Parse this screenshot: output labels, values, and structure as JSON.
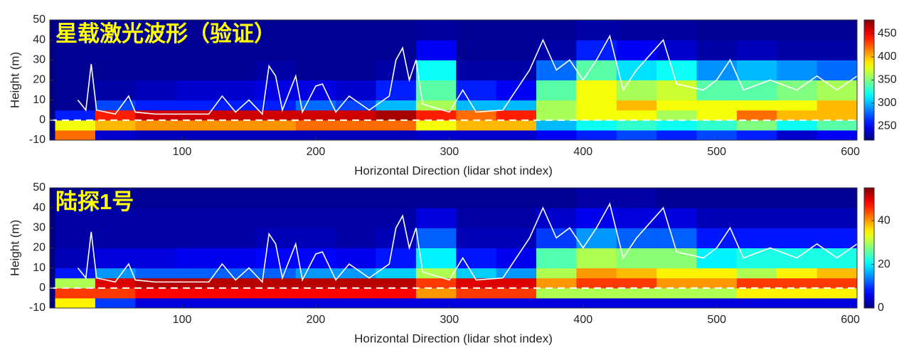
{
  "chart_data": [
    {
      "type": "heatmap",
      "title": "星载激光波形（验证）",
      "x_label": "Horizontal Direction (lidar shot index)",
      "y_label": "Height (m)",
      "xlim": [
        1,
        605
      ],
      "xticks": [
        100,
        200,
        300,
        400,
        500,
        600
      ],
      "ylim": [
        -10,
        50
      ],
      "yticks": [
        -10,
        0,
        10,
        20,
        30,
        40,
        50
      ],
      "xbins": [
        5,
        35,
        65,
        95,
        125,
        155,
        185,
        215,
        245,
        275,
        305,
        335,
        365,
        395,
        425,
        455,
        485,
        515,
        545,
        575,
        605
      ],
      "ybins": [
        -10,
        -5,
        0,
        5,
        10,
        20,
        30,
        40,
        50
      ],
      "colormap": "jet",
      "clim": [
        220,
        480
      ],
      "cticks": [
        250,
        300,
        350,
        400,
        450
      ],
      "z": [
        [
          420,
          240,
          235,
          235,
          235,
          235,
          235,
          235,
          235,
          240,
          240,
          240,
          250,
          260,
          270,
          260,
          270,
          260,
          240,
          250
        ],
        [
          380,
          400,
          410,
          410,
          410,
          410,
          420,
          420,
          420,
          380,
          400,
          400,
          300,
          320,
          330,
          320,
          330,
          350,
          320,
          340
        ],
        [
          260,
          440,
          460,
          460,
          460,
          460,
          460,
          460,
          470,
          440,
          420,
          440,
          360,
          380,
          380,
          360,
          380,
          420,
          400,
          400
        ],
        [
          225,
          270,
          260,
          260,
          260,
          260,
          280,
          270,
          300,
          360,
          300,
          300,
          360,
          380,
          400,
          380,
          380,
          380,
          380,
          400
        ],
        [
          225,
          230,
          235,
          240,
          240,
          245,
          245,
          240,
          260,
          340,
          260,
          250,
          340,
          380,
          360,
          370,
          340,
          340,
          350,
          360
        ],
        [
          225,
          225,
          225,
          225,
          225,
          230,
          225,
          225,
          230,
          320,
          230,
          230,
          280,
          340,
          310,
          320,
          290,
          300,
          290,
          280
        ],
        [
          225,
          225,
          225,
          225,
          225,
          225,
          225,
          225,
          225,
          250,
          225,
          225,
          230,
          260,
          250,
          240,
          230,
          235,
          230,
          230
        ],
        [
          225,
          225,
          225,
          225,
          225,
          225,
          225,
          225,
          225,
          228,
          225,
          225,
          225,
          230,
          228,
          228,
          225,
          225,
          225,
          225
        ]
      ],
      "line": {
        "color": "#ffffff",
        "x": [
          22,
          28,
          32,
          36,
          50,
          60,
          65,
          80,
          100,
          120,
          130,
          140,
          150,
          160,
          165,
          170,
          175,
          185,
          190,
          200,
          205,
          215,
          225,
          240,
          255,
          260,
          265,
          270,
          275,
          280,
          300,
          310,
          320,
          340,
          350,
          360,
          370,
          380,
          390,
          400,
          410,
          420,
          430,
          440,
          460,
          470,
          490,
          500,
          510,
          520,
          540,
          560,
          575,
          590,
          605
        ],
        "values": [
          10,
          5,
          28,
          5,
          3,
          12,
          4,
          3,
          3,
          3,
          12,
          4,
          10,
          3,
          27,
          22,
          5,
          22,
          4,
          17,
          18,
          4,
          12,
          5,
          12,
          30,
          36,
          20,
          30,
          8,
          4,
          15,
          4,
          5,
          15,
          25,
          40,
          25,
          30,
          20,
          30,
          42,
          15,
          25,
          40,
          18,
          15,
          20,
          30,
          15,
          20,
          15,
          22,
          15,
          22
        ]
      },
      "reference_line": {
        "value": 0,
        "color": "#ffffff"
      }
    },
    {
      "type": "heatmap",
      "title": "陆探1号",
      "x_label": "Horizontal Direction (lidar shot index)",
      "y_label": "Height (m)",
      "xlim": [
        1,
        605
      ],
      "xticks": [
        100,
        200,
        300,
        400,
        500,
        600
      ],
      "ylim": [
        -10,
        50
      ],
      "yticks": [
        -10,
        0,
        10,
        20,
        30,
        40,
        50
      ],
      "xbins": [
        5,
        35,
        65,
        95,
        125,
        155,
        185,
        215,
        245,
        275,
        305,
        335,
        365,
        395,
        425,
        455,
        485,
        515,
        545,
        575,
        605
      ],
      "ybins": [
        -10,
        -5,
        0,
        5,
        10,
        20,
        30,
        40,
        50
      ],
      "colormap": "jet",
      "clim": [
        0,
        55
      ],
      "cticks": [
        0,
        20,
        40
      ],
      "z": [
        [
          35,
          10,
          5,
          5,
          5,
          5,
          5,
          5,
          5,
          5,
          5,
          5,
          5,
          5,
          5,
          5,
          5,
          5,
          5,
          5
        ],
        [
          45,
          45,
          48,
          48,
          48,
          48,
          48,
          48,
          48,
          40,
          45,
          45,
          30,
          30,
          30,
          30,
          30,
          35,
          35,
          35
        ],
        [
          30,
          50,
          52,
          52,
          52,
          52,
          52,
          52,
          52,
          45,
          50,
          50,
          40,
          45,
          45,
          40,
          40,
          45,
          45,
          45
        ],
        [
          8,
          15,
          12,
          12,
          12,
          12,
          15,
          15,
          18,
          30,
          18,
          15,
          30,
          40,
          38,
          35,
          35,
          30,
          35,
          38
        ],
        [
          3,
          5,
          5,
          6,
          6,
          7,
          7,
          6,
          8,
          20,
          8,
          6,
          25,
          30,
          28,
          28,
          20,
          22,
          22,
          22
        ],
        [
          2,
          2,
          2,
          2,
          2,
          3,
          3,
          2,
          3,
          12,
          3,
          3,
          10,
          15,
          12,
          12,
          8,
          8,
          8,
          8
        ],
        [
          2,
          2,
          2,
          2,
          2,
          2,
          2,
          2,
          2,
          5,
          2,
          2,
          4,
          6,
          5,
          5,
          3,
          3,
          3,
          3
        ],
        [
          1,
          1,
          1,
          1,
          1,
          1,
          1,
          1,
          1,
          1,
          1,
          1,
          1,
          2,
          2,
          1,
          1,
          1,
          1,
          1
        ]
      ],
      "line": {
        "color": "#ffffff",
        "x": [
          22,
          28,
          32,
          36,
          50,
          60,
          65,
          80,
          100,
          120,
          130,
          140,
          150,
          160,
          165,
          170,
          175,
          185,
          190,
          200,
          205,
          215,
          225,
          240,
          255,
          260,
          265,
          270,
          275,
          280,
          300,
          310,
          320,
          340,
          350,
          360,
          370,
          380,
          390,
          400,
          410,
          420,
          430,
          440,
          460,
          470,
          490,
          500,
          510,
          520,
          540,
          560,
          575,
          590,
          605
        ],
        "values": [
          10,
          5,
          28,
          5,
          3,
          12,
          4,
          3,
          3,
          3,
          12,
          4,
          10,
          3,
          27,
          22,
          5,
          22,
          4,
          17,
          18,
          4,
          12,
          5,
          12,
          30,
          36,
          20,
          30,
          8,
          4,
          15,
          4,
          5,
          15,
          25,
          40,
          25,
          30,
          20,
          30,
          42,
          15,
          25,
          40,
          18,
          15,
          20,
          30,
          15,
          20,
          15,
          22,
          15,
          22
        ]
      },
      "reference_line": {
        "value": 0,
        "color": "#ffffff"
      }
    }
  ]
}
